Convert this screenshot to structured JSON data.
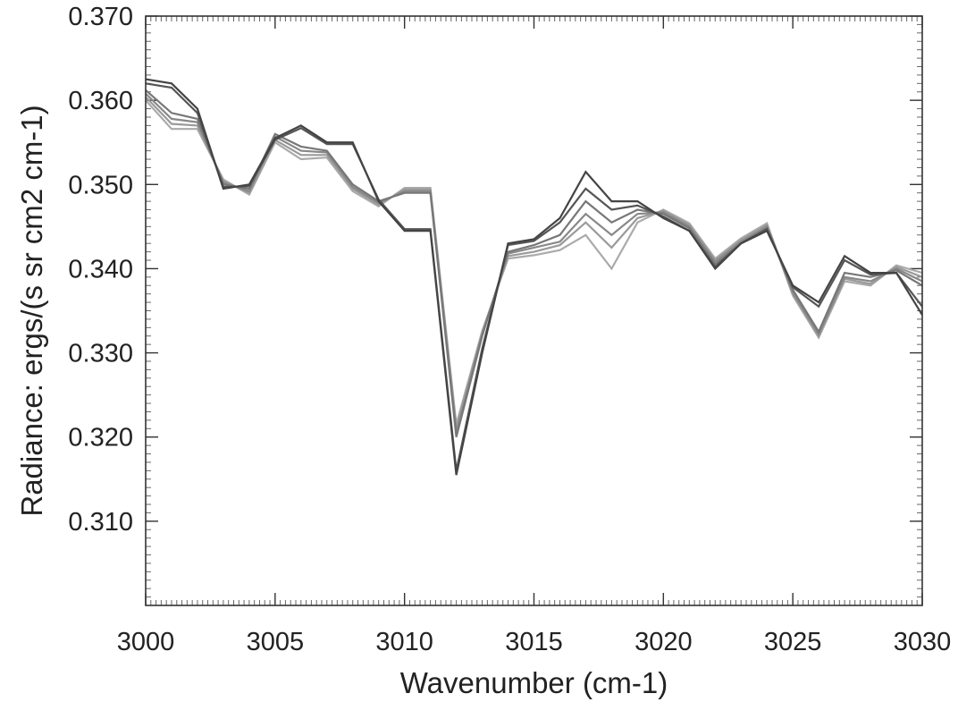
{
  "chart_data": {
    "type": "line",
    "title": "",
    "xlabel": "Wavenumber (cm-1)",
    "ylabel": "Radiance: ergs/(s sr cm2 cm-1)",
    "xlim": [
      3000,
      3030
    ],
    "ylim": [
      0.3,
      0.37
    ],
    "xticks": [
      3000,
      3005,
      3010,
      3015,
      3020,
      3025,
      3030
    ],
    "xtick_labels": [
      "3000",
      "3005",
      "3010",
      "3015",
      "3020",
      "3025",
      "3030"
    ],
    "yticks": [
      0.31,
      0.32,
      0.33,
      0.34,
      0.35,
      0.36,
      0.37
    ],
    "ytick_labels": [
      "0.310",
      "0.320",
      "0.330",
      "0.340",
      "0.350",
      "0.360",
      "0.370"
    ],
    "grid": false,
    "legend": "none",
    "x": [
      3000,
      3001,
      3002,
      3003,
      3004,
      3005,
      3006,
      3007,
      3008,
      3009,
      3010,
      3011,
      3012,
      3013,
      3014,
      3015,
      3016,
      3017,
      3018,
      3019,
      3020,
      3021,
      3022,
      3023,
      3024,
      3025,
      3026,
      3027,
      3028,
      3029,
      3030
    ],
    "series": [
      {
        "color": "#444444",
        "values": [
          0.3625,
          0.362,
          0.359,
          0.3495,
          0.35,
          0.3555,
          0.357,
          0.355,
          0.355,
          0.348,
          0.3445,
          0.3445,
          0.3155,
          0.33,
          0.343,
          0.3435,
          0.346,
          0.3515,
          0.348,
          0.348,
          0.346,
          0.3445,
          0.34,
          0.343,
          0.3445,
          0.338,
          0.336,
          0.3415,
          0.3395,
          0.3395,
          0.3345
        ]
      },
      {
        "color": "#555555",
        "values": [
          0.362,
          0.3615,
          0.3585,
          0.3497,
          0.3498,
          0.3553,
          0.3567,
          0.3548,
          0.3548,
          0.3482,
          0.3447,
          0.3447,
          0.316,
          0.3305,
          0.3428,
          0.3433,
          0.3455,
          0.3495,
          0.347,
          0.3475,
          0.3462,
          0.3445,
          0.3402,
          0.343,
          0.3447,
          0.3378,
          0.3355,
          0.341,
          0.3393,
          0.3395,
          0.3355
        ]
      },
      {
        "color": "#777777",
        "values": [
          0.3612,
          0.3585,
          0.3578,
          0.35,
          0.3495,
          0.356,
          0.3545,
          0.354,
          0.35,
          0.348,
          0.349,
          0.349,
          0.32,
          0.332,
          0.342,
          0.3428,
          0.344,
          0.348,
          0.3455,
          0.347,
          0.3465,
          0.3448,
          0.3405,
          0.343,
          0.3448,
          0.3375,
          0.3325,
          0.3395,
          0.339,
          0.3398,
          0.338
        ]
      },
      {
        "color": "#888888",
        "values": [
          0.3608,
          0.3578,
          0.3574,
          0.3502,
          0.3492,
          0.3557,
          0.354,
          0.3538,
          0.3497,
          0.3478,
          0.3492,
          0.3492,
          0.3205,
          0.3322,
          0.3418,
          0.3425,
          0.3432,
          0.3465,
          0.344,
          0.3465,
          0.3467,
          0.345,
          0.3408,
          0.3432,
          0.345,
          0.3372,
          0.3322,
          0.339,
          0.3385,
          0.34,
          0.3385
        ]
      },
      {
        "color": "#9a9a9a",
        "values": [
          0.3604,
          0.3572,
          0.357,
          0.3504,
          0.349,
          0.3553,
          0.3535,
          0.3535,
          0.3495,
          0.3476,
          0.3494,
          0.3494,
          0.321,
          0.3324,
          0.3415,
          0.342,
          0.3428,
          0.3455,
          0.3425,
          0.346,
          0.3469,
          0.3452,
          0.341,
          0.3434,
          0.3452,
          0.337,
          0.332,
          0.3388,
          0.3382,
          0.3402,
          0.339
        ]
      },
      {
        "color": "#aaaaaa",
        "values": [
          0.36,
          0.3566,
          0.3566,
          0.3506,
          0.3488,
          0.355,
          0.353,
          0.3532,
          0.3492,
          0.3474,
          0.3496,
          0.3496,
          0.3215,
          0.3326,
          0.3412,
          0.3416,
          0.3422,
          0.344,
          0.34,
          0.3455,
          0.347,
          0.3454,
          0.3412,
          0.3436,
          0.3454,
          0.3368,
          0.3318,
          0.3385,
          0.338,
          0.3404,
          0.3395
        ]
      }
    ]
  }
}
